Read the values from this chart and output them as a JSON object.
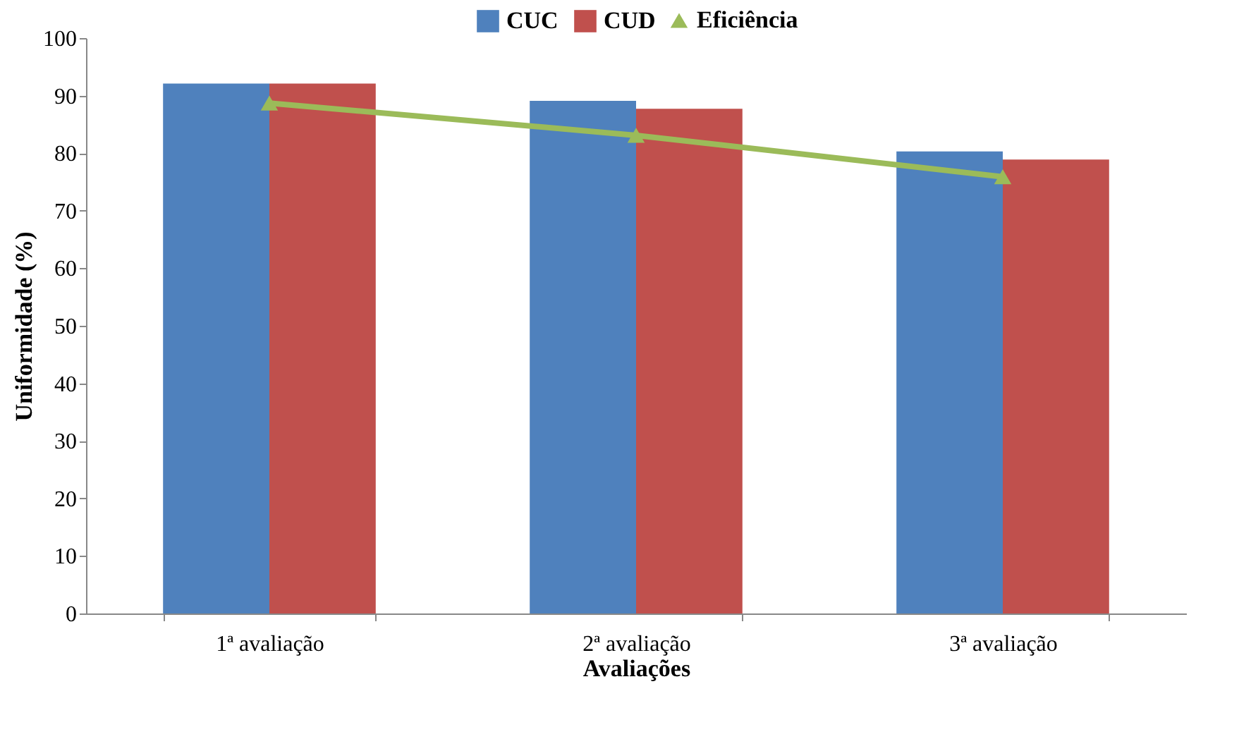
{
  "chart_data": {
    "type": "bar",
    "xlabel": "Avaliações",
    "ylabel": "Uniformidade (%)",
    "categories": [
      "1ª avaliação",
      "2ª avaliação",
      "3ª avaliação"
    ],
    "series": [
      {
        "name": "CUC",
        "color": "#4f81bd",
        "values": [
          92.1,
          89.1,
          80.3
        ]
      },
      {
        "name": "CUD",
        "color": "#c0504d",
        "values": [
          92.1,
          87.7,
          78.9
        ]
      },
      {
        "name": "Eficiência",
        "type": "line",
        "color": "#9bbb59",
        "marker": "triangle",
        "values": [
          88.7,
          83.1,
          75.9
        ]
      }
    ],
    "ylim": [
      0,
      100
    ],
    "yticks": [
      0,
      10,
      20,
      30,
      40,
      50,
      60,
      70,
      80,
      90,
      100
    ],
    "grid": false,
    "legend": "top"
  }
}
